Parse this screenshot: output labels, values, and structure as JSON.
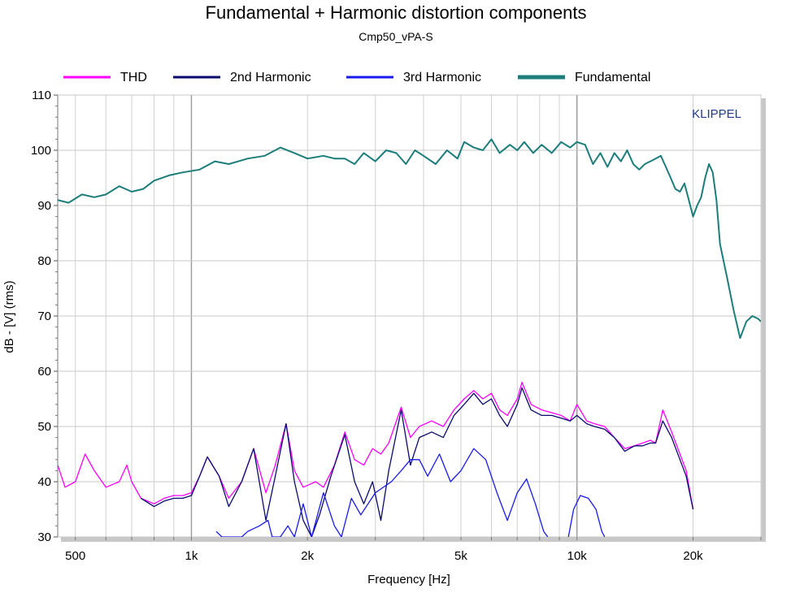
{
  "chart_data": {
    "type": "line",
    "title": "Fundamental + Harmonic distortion components",
    "subtitle": "Cmp50_vPA-S",
    "xlabel": "Frequency [Hz]",
    "ylabel": "dB - [V]  (rms)",
    "x_scale": "log",
    "xlim": [
      450,
      30000
    ],
    "ylim": [
      30,
      110
    ],
    "x_ticks": [
      {
        "value": 500,
        "label": "500"
      },
      {
        "value": 1000,
        "label": "1k"
      },
      {
        "value": 2000,
        "label": "2k"
      },
      {
        "value": 5000,
        "label": "5k"
      },
      {
        "value": 10000,
        "label": "10k"
      },
      {
        "value": 20000,
        "label": "20k"
      }
    ],
    "y_ticks": [
      30,
      40,
      50,
      60,
      70,
      80,
      90,
      100,
      110
    ],
    "y_tick_labels": [
      "30",
      "40",
      "50",
      "60",
      "70",
      "80",
      "90",
      "100",
      "110"
    ],
    "grid": true,
    "legend_placement": "top",
    "watermark": "KLIPPEL",
    "watermark_color": "#1f3a93",
    "series": [
      {
        "name": "THD",
        "color": "#ff00ff",
        "points": [
          [
            450,
            43
          ],
          [
            470,
            39
          ],
          [
            500,
            40
          ],
          [
            530,
            45
          ],
          [
            560,
            42
          ],
          [
            600,
            39
          ],
          [
            650,
            40
          ],
          [
            680,
            43
          ],
          [
            700,
            40
          ],
          [
            740,
            37
          ],
          [
            800,
            36
          ],
          [
            850,
            37
          ],
          [
            900,
            37.5
          ],
          [
            950,
            37.5
          ],
          [
            1000,
            38
          ],
          [
            1050,
            41
          ],
          [
            1100,
            44.5
          ],
          [
            1180,
            41
          ],
          [
            1250,
            37
          ],
          [
            1350,
            40
          ],
          [
            1450,
            46
          ],
          [
            1560,
            38
          ],
          [
            1650,
            43
          ],
          [
            1760,
            50.5
          ],
          [
            1850,
            42
          ],
          [
            1950,
            39
          ],
          [
            2100,
            40
          ],
          [
            2200,
            39
          ],
          [
            2350,
            43
          ],
          [
            2500,
            49
          ],
          [
            2650,
            44
          ],
          [
            2800,
            43
          ],
          [
            2950,
            46
          ],
          [
            3100,
            45
          ],
          [
            3250,
            47
          ],
          [
            3500,
            53.5
          ],
          [
            3700,
            48
          ],
          [
            3900,
            50
          ],
          [
            4200,
            51
          ],
          [
            4500,
            50
          ],
          [
            4800,
            53
          ],
          [
            5100,
            55
          ],
          [
            5400,
            56.5
          ],
          [
            5700,
            55
          ],
          [
            6000,
            56
          ],
          [
            6300,
            53
          ],
          [
            6600,
            52
          ],
          [
            7000,
            55
          ],
          [
            7200,
            58
          ],
          [
            7600,
            54
          ],
          [
            8100,
            53
          ],
          [
            8600,
            52.5
          ],
          [
            9100,
            52
          ],
          [
            9600,
            51
          ],
          [
            10000,
            54
          ],
          [
            10600,
            51
          ],
          [
            11100,
            50.5
          ],
          [
            11800,
            50
          ],
          [
            12500,
            48
          ],
          [
            13300,
            46
          ],
          [
            14100,
            46.5
          ],
          [
            14800,
            47
          ],
          [
            15500,
            47.5
          ],
          [
            16000,
            47
          ],
          [
            16700,
            53
          ],
          [
            17600,
            49
          ],
          [
            18500,
            45
          ],
          [
            19200,
            42
          ],
          [
            20000,
            35
          ]
        ]
      },
      {
        "name": "2nd Harmonic",
        "color": "#0a0a6e",
        "points": [
          [
            740,
            37
          ],
          [
            800,
            35.5
          ],
          [
            850,
            36.5
          ],
          [
            900,
            37
          ],
          [
            950,
            37
          ],
          [
            1000,
            37.5
          ],
          [
            1050,
            41
          ],
          [
            1100,
            44.5
          ],
          [
            1180,
            41
          ],
          [
            1250,
            35.5
          ],
          [
            1350,
            40
          ],
          [
            1450,
            46
          ],
          [
            1560,
            33
          ],
          [
            1650,
            41
          ],
          [
            1760,
            50.5
          ],
          [
            1850,
            40
          ],
          [
            1950,
            33
          ],
          [
            2050,
            30
          ],
          [
            2150,
            34
          ],
          [
            2300,
            41
          ],
          [
            2500,
            48.5
          ],
          [
            2650,
            40
          ],
          [
            2800,
            36
          ],
          [
            2950,
            40
          ],
          [
            3100,
            33
          ],
          [
            3250,
            42
          ],
          [
            3500,
            53
          ],
          [
            3700,
            43
          ],
          [
            3900,
            48
          ],
          [
            4200,
            49
          ],
          [
            4500,
            48
          ],
          [
            4800,
            52
          ],
          [
            5100,
            54
          ],
          [
            5400,
            56
          ],
          [
            5700,
            54
          ],
          [
            6000,
            55
          ],
          [
            6300,
            52
          ],
          [
            6600,
            50
          ],
          [
            7000,
            54
          ],
          [
            7200,
            57
          ],
          [
            7600,
            53
          ],
          [
            8100,
            52
          ],
          [
            8600,
            52
          ],
          [
            9100,
            51.5
          ],
          [
            9600,
            51
          ],
          [
            10000,
            52
          ],
          [
            10600,
            50.5
          ],
          [
            11100,
            50
          ],
          [
            11800,
            49.5
          ],
          [
            12500,
            48
          ],
          [
            13300,
            45.5
          ],
          [
            14100,
            46.5
          ],
          [
            14800,
            46.5
          ],
          [
            15500,
            47
          ],
          [
            16000,
            47
          ],
          [
            16700,
            51
          ],
          [
            17600,
            48
          ],
          [
            18500,
            44
          ],
          [
            19200,
            41
          ],
          [
            20000,
            35
          ]
        ]
      },
      {
        "name": "3rd Harmonic",
        "color": "#1a1aee",
        "points": [
          [
            1160,
            31
          ],
          [
            1200,
            30
          ],
          [
            1350,
            30
          ],
          [
            1400,
            31
          ],
          [
            1500,
            32
          ],
          [
            1580,
            33
          ],
          [
            1620,
            30
          ],
          [
            1700,
            30
          ],
          [
            1780,
            32
          ],
          [
            1850,
            30
          ],
          [
            1950,
            36
          ],
          [
            2050,
            30
          ],
          [
            2200,
            38
          ],
          [
            2350,
            32
          ],
          [
            2450,
            30
          ],
          [
            2600,
            37
          ],
          [
            2750,
            34
          ],
          [
            3000,
            38
          ],
          [
            3300,
            40
          ],
          [
            3500,
            42
          ],
          [
            3700,
            44
          ],
          [
            3900,
            44
          ],
          [
            4100,
            41
          ],
          [
            4400,
            45
          ],
          [
            4700,
            40
          ],
          [
            5000,
            42
          ],
          [
            5400,
            46
          ],
          [
            5800,
            44
          ],
          [
            6200,
            38
          ],
          [
            6600,
            33
          ],
          [
            7000,
            38
          ],
          [
            7400,
            40.5
          ],
          [
            7800,
            36
          ],
          [
            8200,
            31
          ],
          [
            8400,
            30
          ]
        ]
      },
      {
        "name": "3rd Harmonic segment 2",
        "color": "#1a1aee",
        "points": [
          [
            9500,
            30
          ],
          [
            9800,
            35
          ],
          [
            10200,
            37.5
          ],
          [
            10700,
            37
          ],
          [
            11200,
            35
          ],
          [
            11600,
            31
          ],
          [
            11800,
            30
          ]
        ]
      },
      {
        "name": "Fundamental",
        "color": "#1c7d7a",
        "points": [
          [
            450,
            91
          ],
          [
            480,
            90.5
          ],
          [
            520,
            92
          ],
          [
            560,
            91.5
          ],
          [
            600,
            92
          ],
          [
            650,
            93.5
          ],
          [
            700,
            92.5
          ],
          [
            750,
            93
          ],
          [
            800,
            94.5
          ],
          [
            880,
            95.5
          ],
          [
            950,
            96
          ],
          [
            1050,
            96.5
          ],
          [
            1150,
            98
          ],
          [
            1250,
            97.5
          ],
          [
            1400,
            98.5
          ],
          [
            1550,
            99
          ],
          [
            1700,
            100.5
          ],
          [
            1850,
            99.5
          ],
          [
            2000,
            98.5
          ],
          [
            2200,
            99
          ],
          [
            2350,
            98.5
          ],
          [
            2500,
            98.5
          ],
          [
            2650,
            97.5
          ],
          [
            2800,
            99.5
          ],
          [
            3000,
            98
          ],
          [
            3200,
            100
          ],
          [
            3400,
            99.5
          ],
          [
            3600,
            97.5
          ],
          [
            3800,
            100
          ],
          [
            4000,
            99
          ],
          [
            4300,
            97.5
          ],
          [
            4600,
            100
          ],
          [
            4900,
            98.5
          ],
          [
            5100,
            101.5
          ],
          [
            5400,
            100.5
          ],
          [
            5700,
            100
          ],
          [
            6000,
            102
          ],
          [
            6300,
            99.5
          ],
          [
            6700,
            101
          ],
          [
            7000,
            100
          ],
          [
            7300,
            101.5
          ],
          [
            7700,
            99.5
          ],
          [
            8100,
            101
          ],
          [
            8600,
            99.5
          ],
          [
            9100,
            101.5
          ],
          [
            9600,
            100.5
          ],
          [
            10000,
            101.5
          ],
          [
            10500,
            101
          ],
          [
            11000,
            97.5
          ],
          [
            11500,
            99.5
          ],
          [
            12000,
            97
          ],
          [
            12500,
            99.5
          ],
          [
            13000,
            98
          ],
          [
            13500,
            100
          ],
          [
            14000,
            97.5
          ],
          [
            14500,
            96.5
          ],
          [
            15000,
            97.5
          ],
          [
            15500,
            98
          ],
          [
            16000,
            98.5
          ],
          [
            16500,
            99
          ],
          [
            17000,
            97
          ],
          [
            17500,
            95
          ],
          [
            18000,
            93
          ],
          [
            18500,
            92.5
          ],
          [
            19000,
            94
          ],
          [
            19500,
            91
          ],
          [
            20000,
            88
          ],
          [
            20500,
            90
          ],
          [
            21000,
            91.5
          ],
          [
            21500,
            95
          ],
          [
            22000,
            97.5
          ],
          [
            22500,
            96
          ],
          [
            23000,
            91
          ],
          [
            23500,
            83
          ],
          [
            24500,
            77
          ],
          [
            25500,
            71
          ],
          [
            26500,
            66
          ],
          [
            27500,
            69
          ],
          [
            28500,
            70
          ],
          [
            29500,
            69.5
          ],
          [
            30000,
            69
          ]
        ]
      }
    ],
    "legend": [
      {
        "label": "THD",
        "color": "#ff00ff"
      },
      {
        "label": "2nd Harmonic",
        "color": "#0a0a6e"
      },
      {
        "label": "3rd Harmonic",
        "color": "#1a1aee"
      },
      {
        "label": "Fundamental",
        "color": "#1c7d7a"
      }
    ]
  }
}
